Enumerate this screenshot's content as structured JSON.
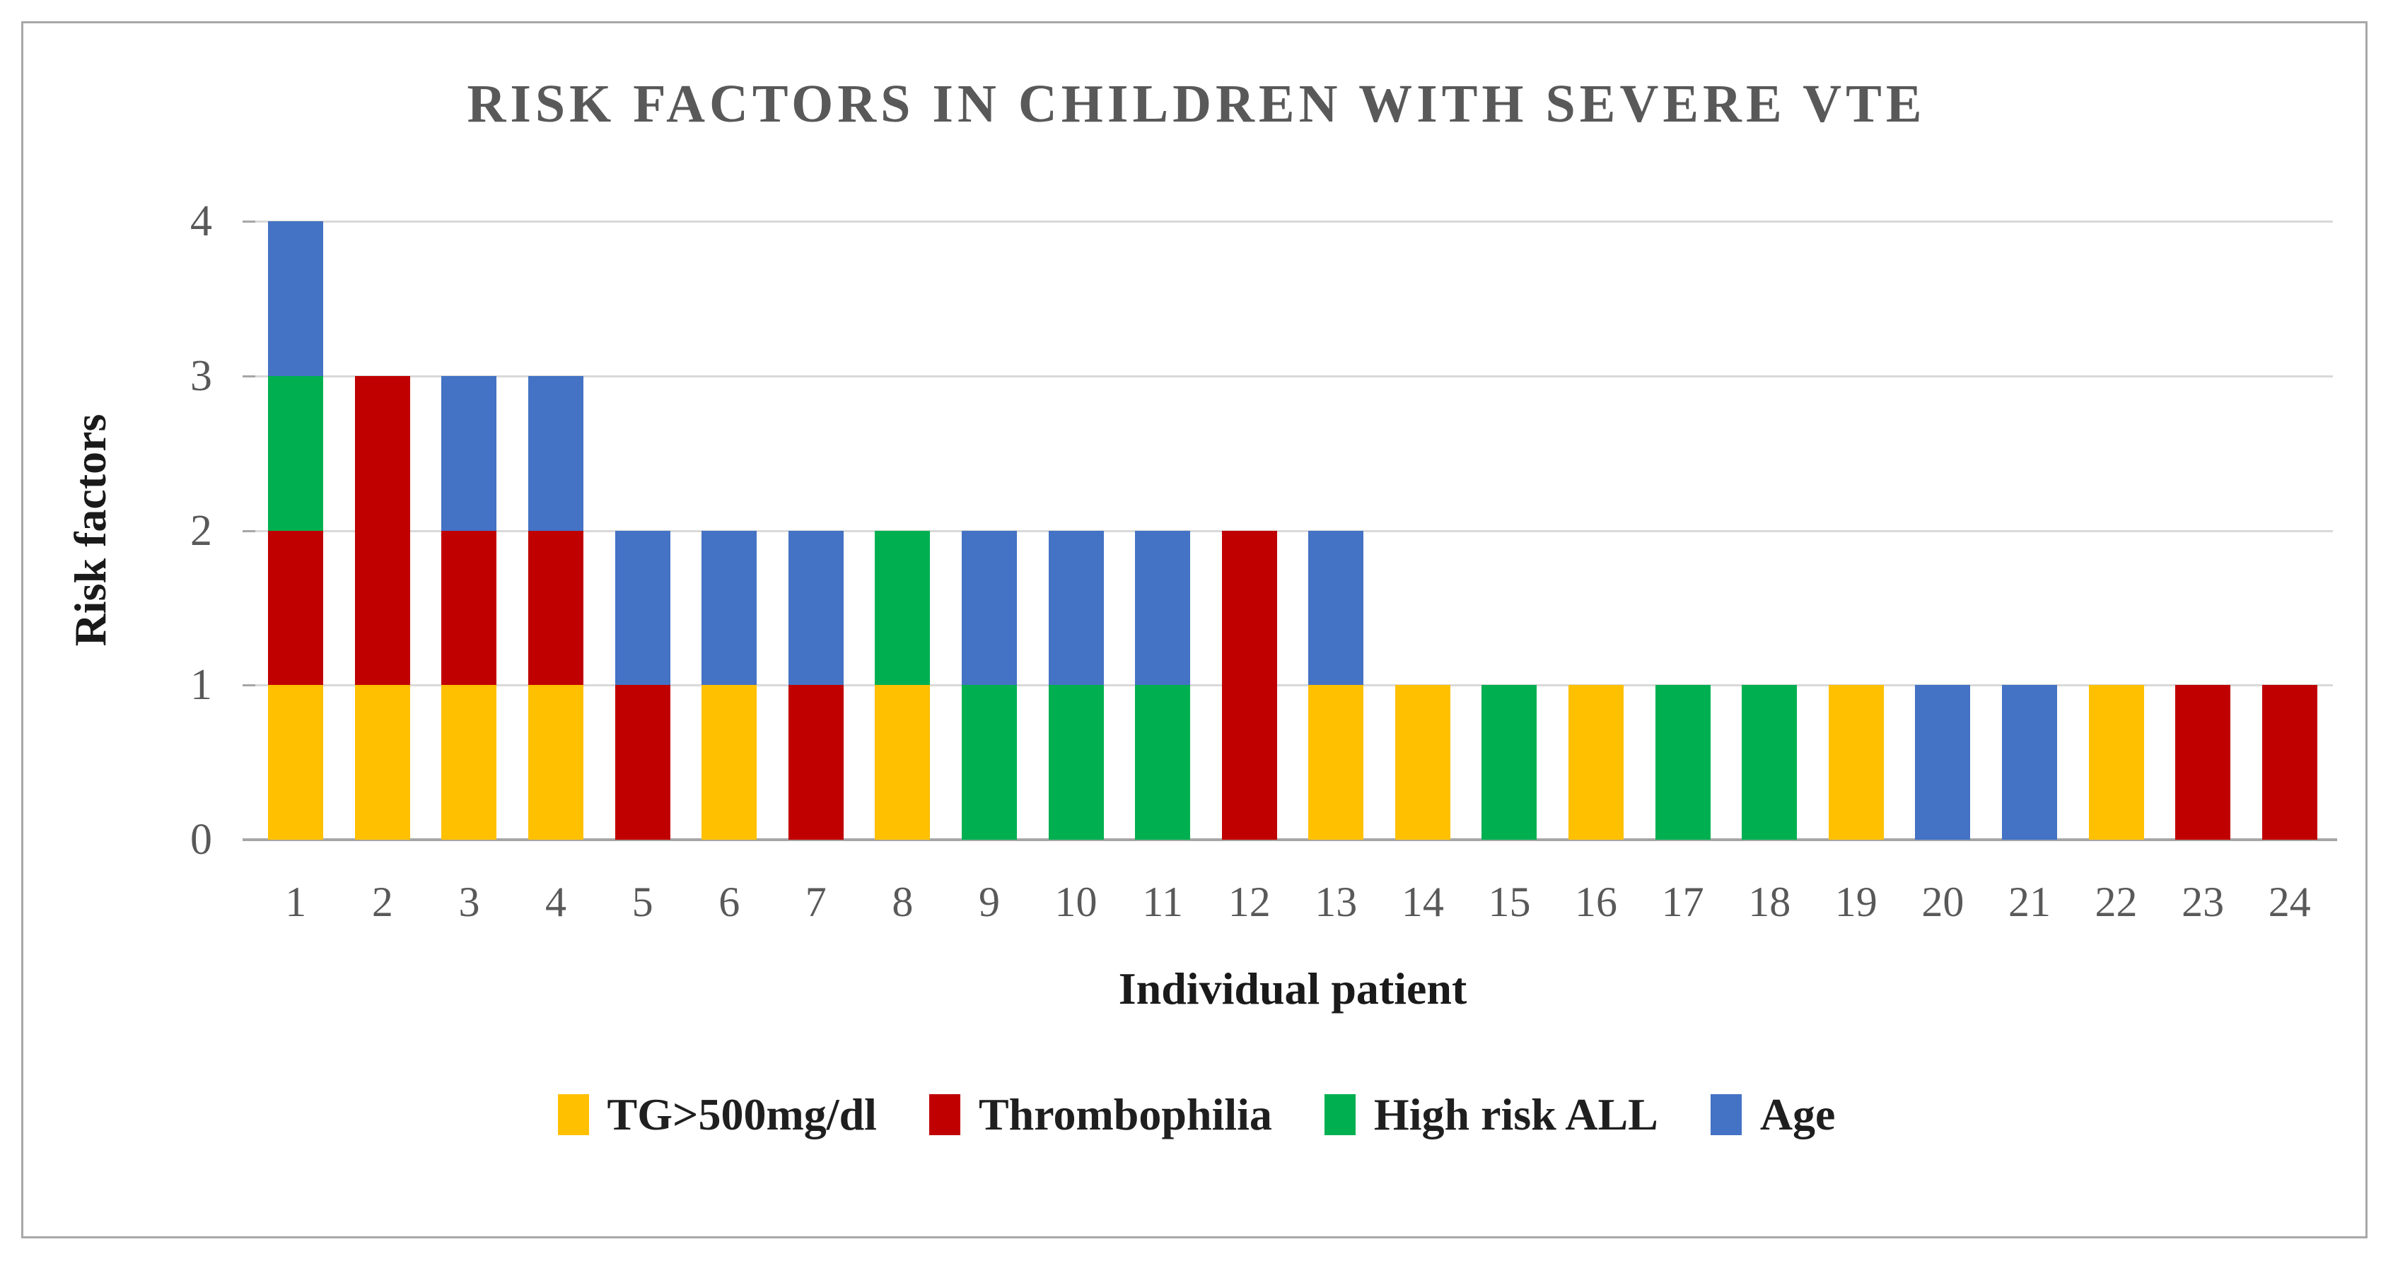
{
  "title": "RISK FACTORS IN CHILDREN WITH SEVERE VTE",
  "chart_data": {
    "type": "bar",
    "stacked": true,
    "title": "RISK FACTORS IN CHILDREN WITH SEVERE VTE",
    "xlabel": "Individual patient",
    "ylabel": "Risk factors",
    "categories": [
      "1",
      "2",
      "3",
      "4",
      "5",
      "6",
      "7",
      "8",
      "9",
      "10",
      "11",
      "12",
      "13",
      "14",
      "15",
      "16",
      "17",
      "18",
      "19",
      "20",
      "21",
      "22",
      "23",
      "24"
    ],
    "y_ticks": [
      "0",
      "1",
      "2",
      "3",
      "4"
    ],
    "ylim": [
      0,
      4
    ],
    "grid": "horizontal",
    "legend_position": "bottom",
    "series": [
      {
        "name": "TG>500mg/dl",
        "color": "#FFC000",
        "values": [
          1,
          1,
          1,
          1,
          0,
          1,
          0,
          1,
          0,
          0,
          0,
          0,
          1,
          1,
          0,
          1,
          0,
          0,
          1,
          0,
          0,
          1,
          0,
          0
        ]
      },
      {
        "name": "Thrombophilia",
        "color": "#C00000",
        "values": [
          1,
          2,
          1,
          1,
          1,
          0,
          1,
          0,
          0,
          0,
          0,
          2,
          0,
          0,
          0,
          0,
          0,
          0,
          0,
          0,
          0,
          0,
          1,
          1
        ]
      },
      {
        "name": "High risk ALL",
        "color": "#00B050",
        "values": [
          1,
          0,
          0,
          0,
          0,
          0,
          0,
          1,
          1,
          1,
          1,
          0,
          0,
          0,
          1,
          0,
          1,
          1,
          0,
          0,
          0,
          0,
          0,
          0
        ]
      },
      {
        "name": "Age",
        "color": "#4472C4",
        "values": [
          1,
          0,
          1,
          1,
          1,
          1,
          1,
          0,
          1,
          1,
          1,
          0,
          1,
          0,
          0,
          0,
          0,
          0,
          0,
          1,
          1,
          0,
          0,
          0
        ]
      }
    ]
  },
  "colors": {
    "title_text": "#595959",
    "tick_text": "#595959",
    "axis_line": "#A6A6A6",
    "gridline": "#D9D9D9",
    "frame_border": "#A8A8A8",
    "background": "#FFFFFF"
  }
}
